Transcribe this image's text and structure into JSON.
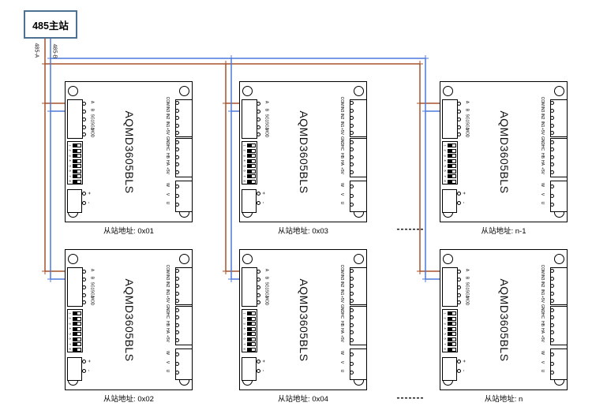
{
  "master": {
    "label": "485主站"
  },
  "wires": {
    "a_label": "485-A",
    "b_label": "485-B"
  },
  "colors": {
    "wire_a": "#a5522b",
    "wire_b": "#4c79dc",
    "master_border": "#4f7191"
  },
  "board": {
    "name": "AQMD3605BLS",
    "left_pins": [
      "A",
      "B",
      "SG1",
      "SG2",
      "MOD"
    ],
    "dip_numbers": [
      "1",
      "2",
      "3",
      "4",
      "5",
      "6",
      "7",
      "8"
    ],
    "power_pins": [
      "+",
      "-"
    ],
    "right_top_pins": [
      "COM",
      "IN3",
      "IN2",
      "IN1",
      "+5V"
    ],
    "right_mid_pins": [
      "GND",
      "HC",
      "HB",
      "HA",
      "+5V"
    ],
    "right_bottom_pins": [
      "W",
      "V",
      "U"
    ]
  },
  "boards": [
    {
      "address_label": "从站地址: 0x01"
    },
    {
      "address_label": "从站地址: 0x03"
    },
    {
      "address_label": "从站地址: n-1"
    },
    {
      "address_label": "从站地址: 0x02"
    },
    {
      "address_label": "从站地址: 0x04"
    },
    {
      "address_label": "从站地址: n"
    }
  ],
  "separators": [
    "-------",
    "-------"
  ]
}
